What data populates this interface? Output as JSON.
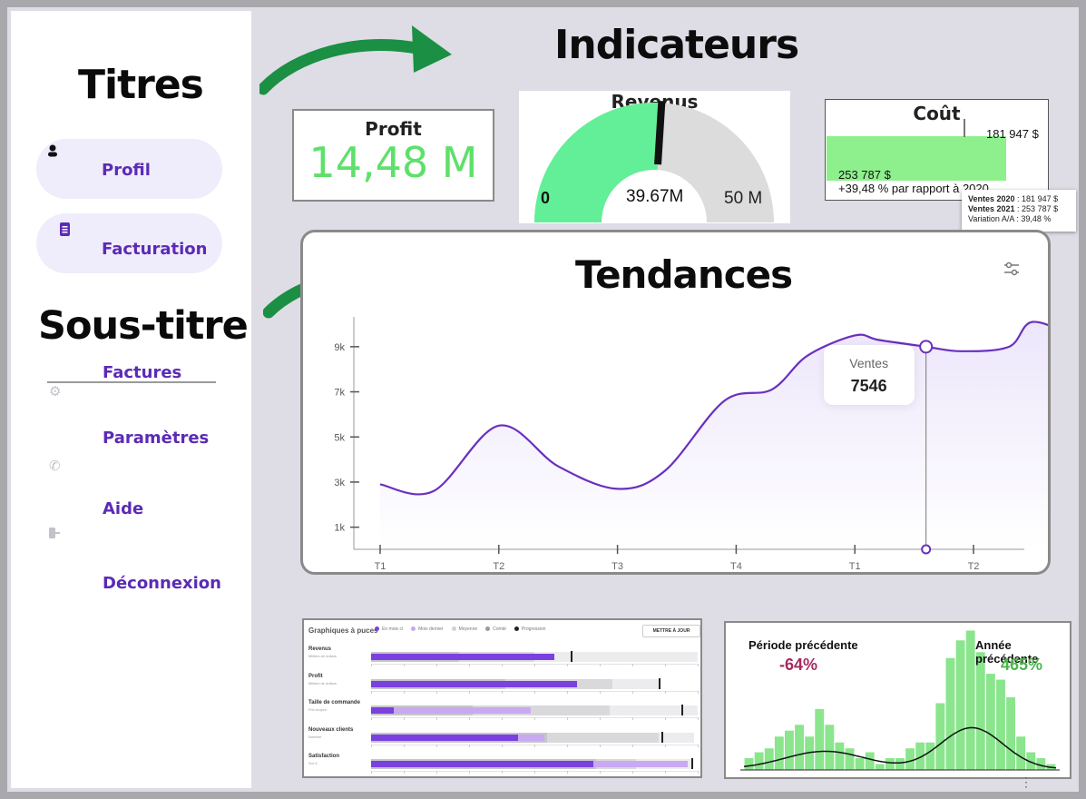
{
  "sidebar": {
    "heading": "Titres",
    "subheading": "Sous-titre",
    "items": [
      {
        "label": "Profil",
        "icon": "user-icon"
      },
      {
        "label": "Facturation",
        "icon": "document-icon"
      },
      {
        "label": "Factures",
        "icon": "gear-icon"
      },
      {
        "label": "Paramètres",
        "icon": "phone-icon"
      },
      {
        "label": "Aide",
        "icon": "logout-icon"
      },
      {
        "label": "Déconnexion",
        "icon": ""
      }
    ]
  },
  "headings": {
    "indicators": "Indicateurs",
    "trends": "Tendances"
  },
  "kpi": {
    "profit": {
      "title": "Profit",
      "value": "14,48 M",
      "color": "#5ee06a"
    },
    "revenue": {
      "title": "Revenus",
      "min": "0",
      "current": "39.67M",
      "max": "50 M",
      "fill_fraction": 0.52,
      "color": "#63ef98"
    },
    "cost": {
      "title": "Coût",
      "target_label": "181 947 $",
      "value_label": "253 787 $",
      "change_label": "+39,48 % par rapport à 2020",
      "bar_fraction": 0.92,
      "target_fraction": 0.7,
      "tooltip": {
        "line1_key": "Ventes 2020",
        "line1_val": " : 181 947 $",
        "line2_key": "Ventes 2021",
        "line2_val": " : 253 787 $",
        "line3": "Variation A/A : 39,48 %"
      }
    }
  },
  "chart_data": [
    {
      "type": "line",
      "title": "Tendances",
      "x_ticks": [
        "T1",
        "T2",
        "T3",
        "T4",
        "T1",
        "T2"
      ],
      "y_ticks": [
        "1k",
        "3k",
        "5k",
        "7k",
        "9k"
      ],
      "ylim": [
        0,
        10200
      ],
      "x": [
        0,
        0.45,
        1.0,
        1.5,
        2.0,
        2.4,
        2.9,
        3.3,
        3.6,
        4.0,
        4.2,
        4.6,
        4.9,
        5.3,
        5.5,
        5.9,
        6.2,
        6.6
      ],
      "values": [
        2900,
        2600,
        5500,
        3700,
        2700,
        3500,
        6600,
        7100,
        8600,
        9500,
        9300,
        9000,
        8800,
        9000,
        10100,
        9300,
        8600,
        8200
      ],
      "tooltip": {
        "label": "Ventes",
        "value": "7546",
        "x": 4.6
      },
      "line_color": "#6a2fbf",
      "grid": false
    },
    {
      "type": "bar",
      "title": "Graphiques à puces",
      "legend": [
        "En mois ci",
        "Mois dernier",
        "Moyenne",
        "Comté",
        "Progression"
      ],
      "button": "METTRE À JOUR",
      "categories": [
        "Revenus",
        "Profit",
        "Taille de commande",
        "Nouveaux clients",
        "Satisfaction"
      ],
      "subtitles": [
        "Milliers de dollars",
        "Milliers de dollars",
        "Prix moyen",
        "Nombre",
        "Sur 5"
      ],
      "values": [
        0.56,
        0.63,
        0.07,
        0.45,
        0.68
      ],
      "previous": [
        0.28,
        0.41,
        0.49,
        0.53,
        0.97
      ],
      "targets": [
        0.61,
        0.88,
        0.95,
        0.89,
        0.98
      ],
      "bands": [
        [
          0.27,
          0.5,
          1.0
        ],
        [
          0.41,
          0.74,
          0.88
        ],
        [
          0.31,
          0.73,
          1.0
        ],
        [
          0.54,
          0.88,
          0.99
        ],
        [
          0.69,
          0.81,
          0.98
        ]
      ]
    },
    {
      "type": "bar",
      "title": "",
      "labels": {
        "left_title": "Période précédente",
        "left_value": "-64%",
        "right_title": "Année précédente",
        "right_value": "465%"
      },
      "values": [
        6,
        9,
        11,
        17,
        20,
        23,
        17,
        31,
        23,
        14,
        11,
        6,
        9,
        3,
        6,
        6,
        11,
        14,
        14,
        34,
        57,
        66,
        71,
        60,
        49,
        46,
        37,
        17,
        9,
        6,
        3
      ],
      "ylim": [
        0,
        74
      ],
      "bar_color": "#8ae58d",
      "left_color": "#a62a5f",
      "right_color": "#4cb64b"
    }
  ]
}
